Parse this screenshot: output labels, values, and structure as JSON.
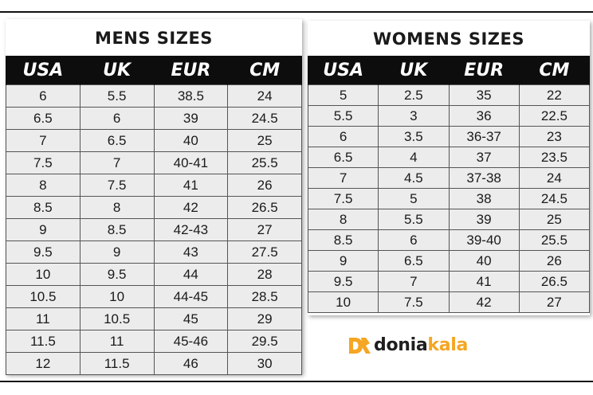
{
  "columns": [
    "USA",
    "UK",
    "EUR",
    "CM"
  ],
  "men": {
    "title": "MENS SIZES",
    "rows": [
      [
        "6",
        "5.5",
        "38.5",
        "24"
      ],
      [
        "6.5",
        "6",
        "39",
        "24.5"
      ],
      [
        "7",
        "6.5",
        "40",
        "25"
      ],
      [
        "7.5",
        "7",
        "40-41",
        "25.5"
      ],
      [
        "8",
        "7.5",
        "41",
        "26"
      ],
      [
        "8.5",
        "8",
        "42",
        "26.5"
      ],
      [
        "9",
        "8.5",
        "42-43",
        "27"
      ],
      [
        "9.5",
        "9",
        "43",
        "27.5"
      ],
      [
        "10",
        "9.5",
        "44",
        "28"
      ],
      [
        "10.5",
        "10",
        "44-45",
        "28.5"
      ],
      [
        "11",
        "10.5",
        "45",
        "29"
      ],
      [
        "11.5",
        "11",
        "45-46",
        "29.5"
      ],
      [
        "12",
        "11.5",
        "46",
        "30"
      ]
    ]
  },
  "women": {
    "title": "WOMENS SIZES",
    "rows": [
      [
        "5",
        "2.5",
        "35",
        "22"
      ],
      [
        "5.5",
        "3",
        "36",
        "22.5"
      ],
      [
        "6",
        "3.5",
        "36-37",
        "23"
      ],
      [
        "6.5",
        "4",
        "37",
        "23.5"
      ],
      [
        "7",
        "4.5",
        "37-38",
        "24"
      ],
      [
        "7.5",
        "5",
        "38",
        "24.5"
      ],
      [
        "8",
        "5.5",
        "39",
        "25"
      ],
      [
        "8.5",
        "6",
        "39-40",
        "25.5"
      ],
      [
        "9",
        "6.5",
        "40",
        "26"
      ],
      [
        "9.5",
        "7",
        "41",
        "26.5"
      ],
      [
        "10",
        "7.5",
        "42",
        "27"
      ]
    ]
  },
  "logo": {
    "part1": "donia",
    "part2": "kala",
    "icon": "dk-logo-icon",
    "colors": {
      "dark": "#1f1f1f",
      "accent": "#f5a623"
    }
  }
}
